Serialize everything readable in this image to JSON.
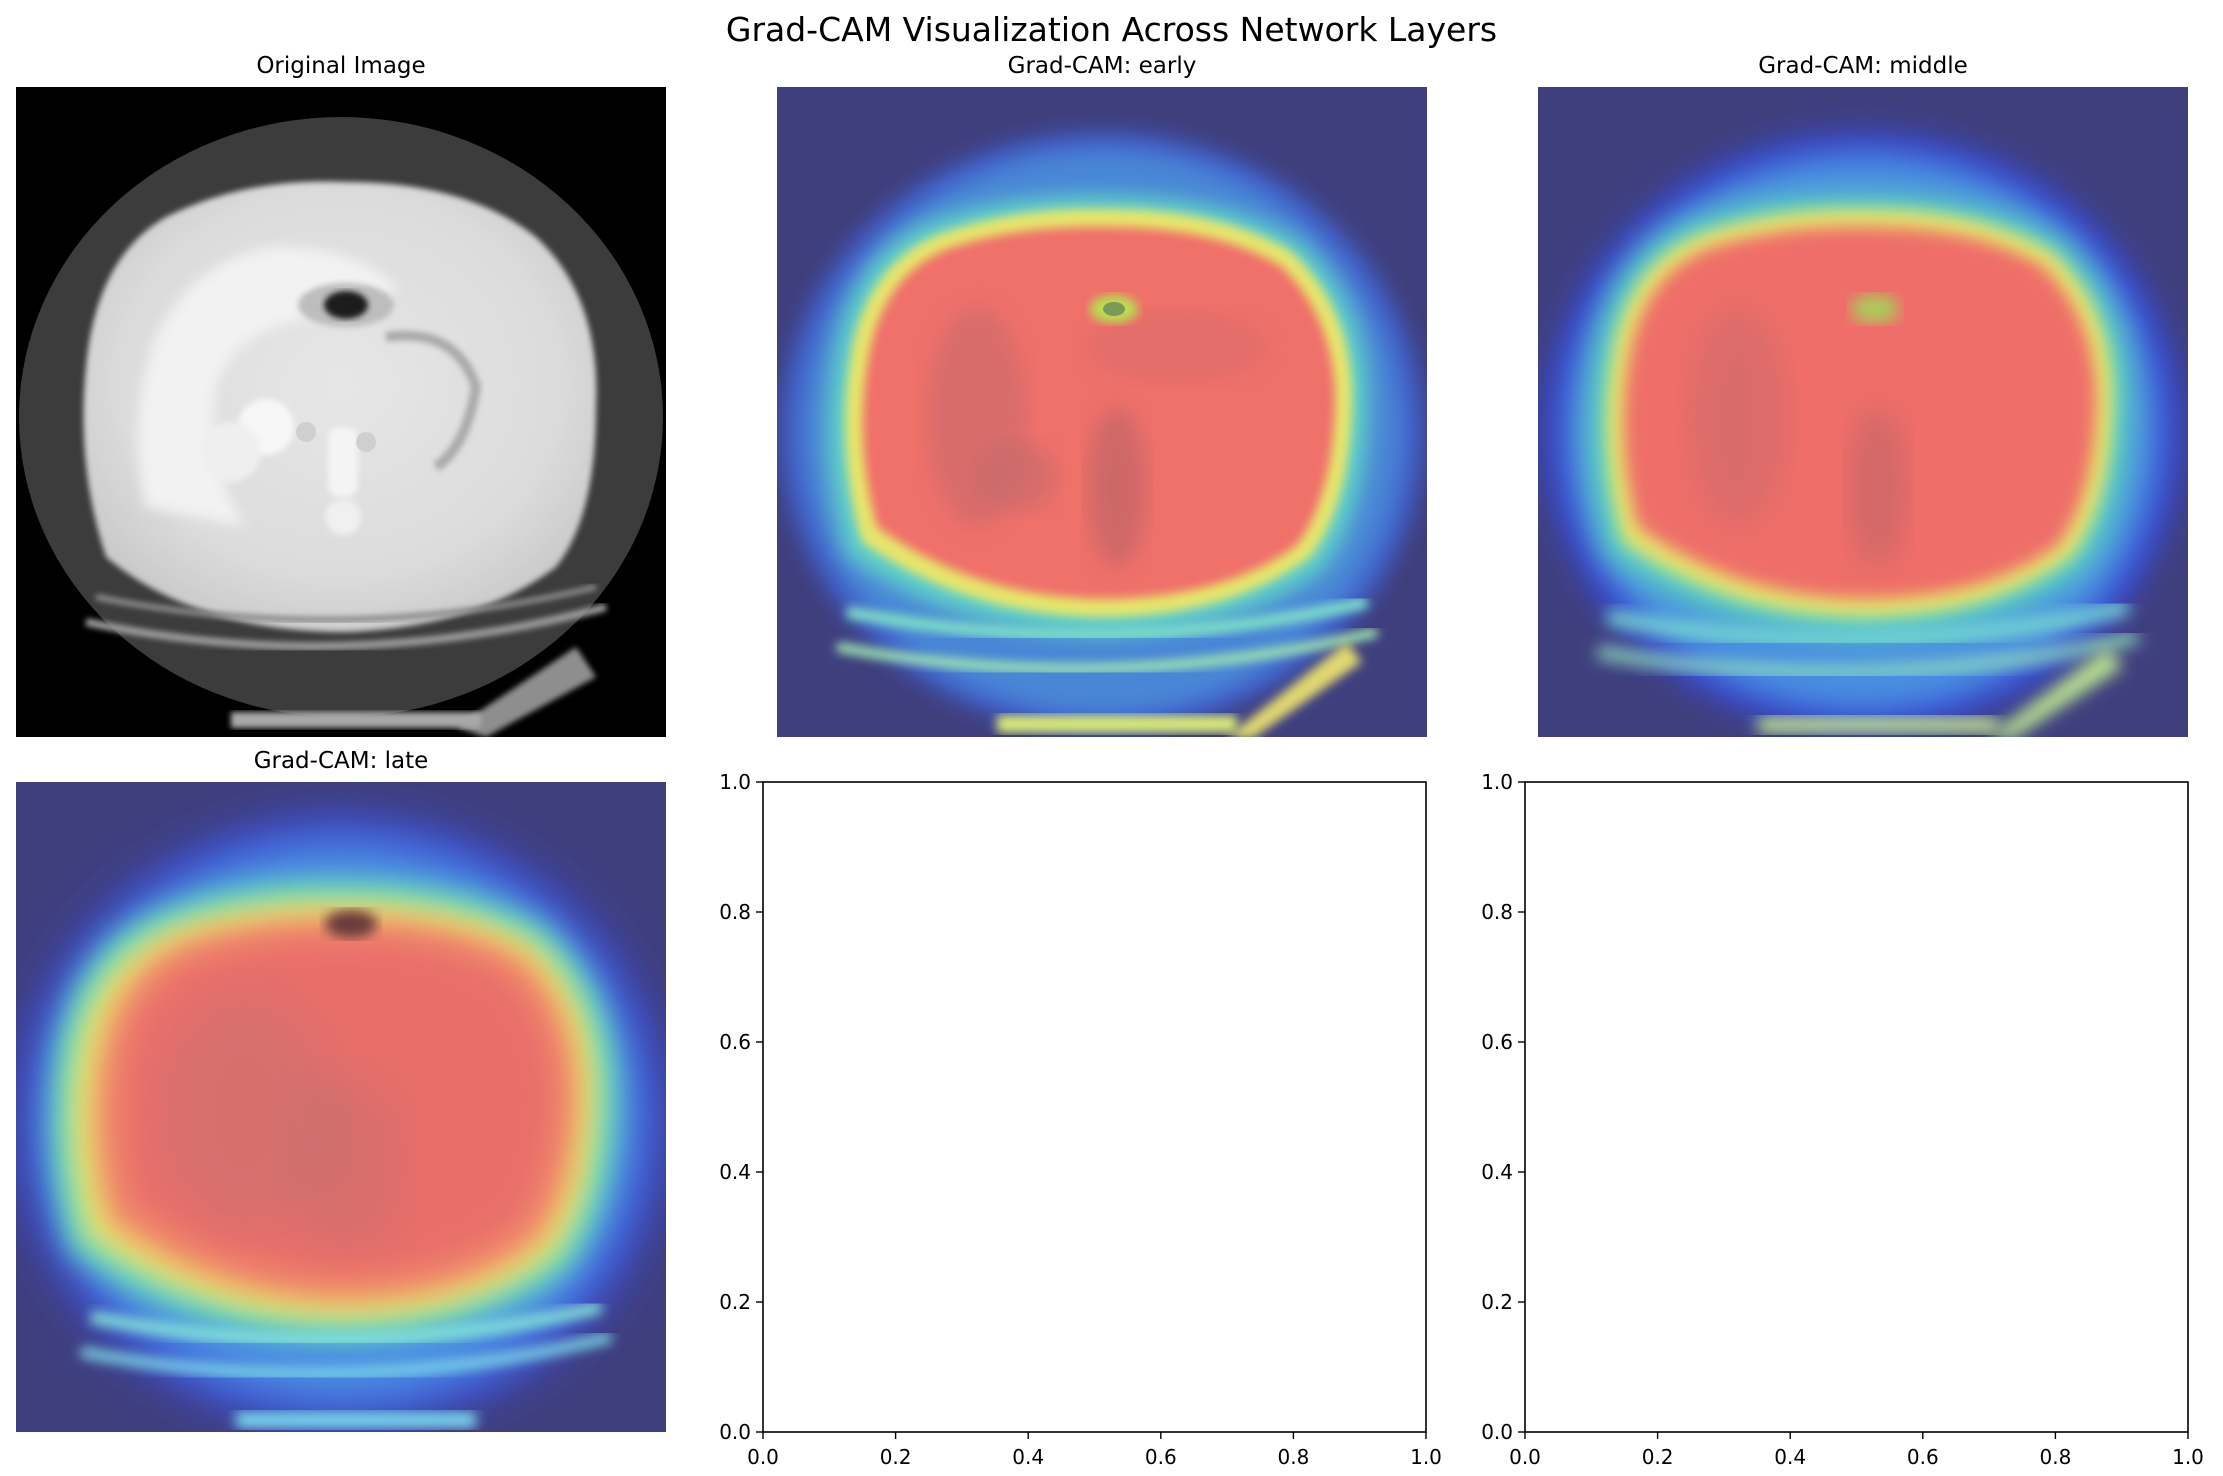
{
  "figure": {
    "title": "Grad-CAM Visualization Across Network Layers"
  },
  "panels": {
    "original": {
      "title": "Original Image"
    },
    "early": {
      "title": "Grad-CAM: early"
    },
    "middle": {
      "title": "Grad-CAM: middle"
    },
    "late": {
      "title": "Grad-CAM: late"
    }
  },
  "chart_data": [
    {
      "type": "scatter",
      "title": "",
      "xlabel": "",
      "ylabel": "",
      "xlim": [
        0.0,
        1.0
      ],
      "ylim": [
        0.0,
        1.0
      ],
      "xticks": [
        "0.0",
        "0.2",
        "0.4",
        "0.6",
        "0.8",
        "1.0"
      ],
      "yticks": [
        "0.0",
        "0.2",
        "0.4",
        "0.6",
        "0.8",
        "1.0"
      ],
      "series": []
    },
    {
      "type": "scatter",
      "title": "",
      "xlabel": "",
      "ylabel": "",
      "xlim": [
        0.0,
        1.0
      ],
      "ylim": [
        0.0,
        1.0
      ],
      "xticks": [
        "0.0",
        "0.2",
        "0.4",
        "0.6",
        "0.8",
        "1.0"
      ],
      "yticks": [
        "0.0",
        "0.2",
        "0.4",
        "0.6",
        "0.8",
        "1.0"
      ],
      "series": []
    }
  ],
  "colors": {
    "heat_background": "#3f3f7e",
    "heat_hot": "#f0706b",
    "ct_background": "#000000"
  }
}
